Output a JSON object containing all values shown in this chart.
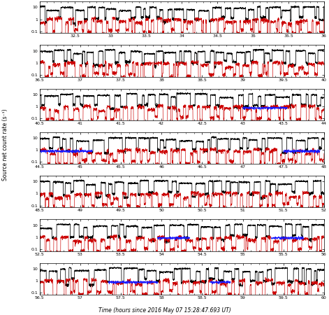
{
  "n_panels": 7,
  "panel_ranges": [
    [
      32.0,
      36.0
    ],
    [
      36.5,
      40.0
    ],
    [
      40.5,
      44.0
    ],
    [
      44.5,
      48.0
    ],
    [
      48.5,
      52.0
    ],
    [
      52.5,
      56.0
    ],
    [
      56.5,
      60.0
    ]
  ],
  "xtick_sets": [
    [
      32.5,
      33.0,
      33.5,
      34.0,
      34.5,
      35.0,
      35.5,
      36.0
    ],
    [
      36.5,
      37.0,
      37.5,
      38.0,
      38.5,
      39.0,
      39.5,
      40.0
    ],
    [
      40.5,
      41.0,
      41.5,
      42.0,
      42.5,
      43.0,
      43.5,
      44.0
    ],
    [
      44.5,
      45.0,
      45.5,
      46.0,
      46.5,
      47.0,
      47.5,
      48.0
    ],
    [
      48.5,
      49.0,
      49.5,
      50.0,
      50.5,
      51.0,
      51.5,
      52.0
    ],
    [
      52.5,
      53.0,
      53.5,
      54.0,
      54.5,
      55.0,
      55.5,
      56.0
    ],
    [
      56.5,
      57.0,
      57.5,
      58.0,
      58.5,
      59.0,
      59.5,
      60.0
    ]
  ],
  "ylabel": "Source net count rate (s⁻¹)",
  "xlabel": "Time (hours since 2016 May 07 15:28:47.693 UT)",
  "ylim_log": [
    0.07,
    30.0
  ],
  "yticks": [
    0.1,
    1.0,
    10.0
  ],
  "yticklabels": [
    "0.1",
    "1",
    "10"
  ],
  "black_color": "#000000",
  "red_color": "#cc0000",
  "blue_color": "#1a1aff",
  "lw_black": 0.55,
  "lw_red": 0.45,
  "lw_blue": 0.55,
  "dt": 0.0015,
  "blue_segments": [
    {
      "panel": 2,
      "xstart": 43.0,
      "xend": 43.55,
      "base": 0.75
    },
    {
      "panel": 3,
      "xstart": 44.5,
      "xend": 45.15,
      "base": 0.8
    },
    {
      "panel": 3,
      "xstart": 47.5,
      "xend": 47.95,
      "base": 0.8
    },
    {
      "panel": 5,
      "xstart": 53.95,
      "xend": 54.35,
      "base": 0.85
    },
    {
      "panel": 5,
      "xstart": 55.35,
      "xend": 55.75,
      "base": 0.85
    },
    {
      "panel": 6,
      "xstart": 57.35,
      "xend": 57.95,
      "base": 0.75
    },
    {
      "panel": 6,
      "xstart": 58.6,
      "xend": 58.85,
      "base": 0.75
    }
  ]
}
